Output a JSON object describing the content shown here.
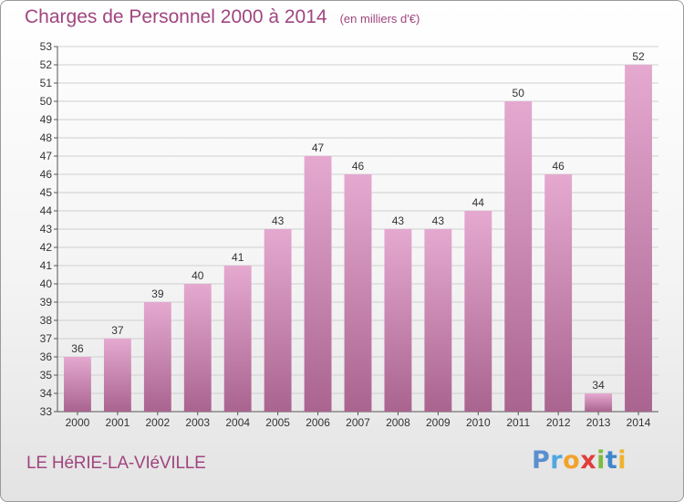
{
  "title": "Charges de Personnel 2000 à 2014",
  "subtitle": "(en milliers d'€)",
  "town": "LE HéRIE-LA-VIéVILLE",
  "logo": {
    "text": "Proxiti",
    "letters": [
      "P",
      "r",
      "o",
      "x",
      "i",
      "t",
      "i"
    ]
  },
  "colors": {
    "accent": "#a0457f",
    "bar_top": "#e5a9d0",
    "bar_bottom": "#a9648f"
  },
  "chart_data": {
    "type": "bar",
    "categories": [
      "2000",
      "2001",
      "2002",
      "2003",
      "2004",
      "2005",
      "2006",
      "2007",
      "2008",
      "2009",
      "2010",
      "2011",
      "2012",
      "2013",
      "2014"
    ],
    "values": [
      36,
      37,
      39,
      40,
      41,
      43,
      47,
      46,
      43,
      43,
      44,
      50,
      46,
      34,
      52
    ],
    "ylim": [
      33,
      53
    ],
    "yticks": [
      33,
      34,
      35,
      36,
      37,
      38,
      39,
      40,
      41,
      42,
      43,
      44,
      45,
      46,
      47,
      48,
      49,
      50,
      51,
      52,
      53
    ],
    "grid": true,
    "data_labels": true
  }
}
